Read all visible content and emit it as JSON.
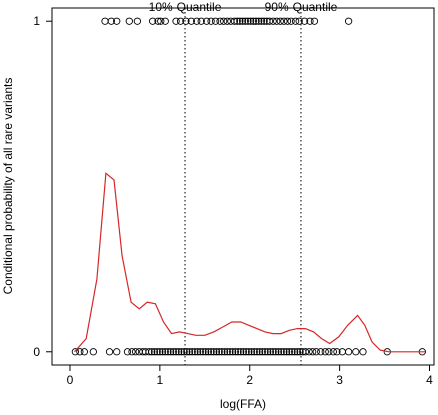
{
  "chart_data": {
    "type": "scatter",
    "title": "",
    "xlabel": "log(FFA)",
    "ylabel": "Conditional probability of all rare variants",
    "xlim": [
      -0.2,
      4.05
    ],
    "ylim": [
      -0.04,
      1.04
    ],
    "x_ticks": [
      0,
      1,
      2,
      3,
      4
    ],
    "x_tick_labels": [
      "0",
      "1",
      "2",
      "3",
      "4"
    ],
    "y_ticks": [
      0,
      1
    ],
    "y_tick_labels": [
      "0",
      "1"
    ],
    "grid": false,
    "legend": "none",
    "colors": {
      "points": "#000000",
      "curve": "#d62728",
      "reference_lines": "#000000",
      "background": "#ffffff"
    },
    "reference_lines": [
      {
        "label": "10%-Quantile",
        "x": 1.28
      },
      {
        "label": "90%-Quantile",
        "x": 2.57
      }
    ],
    "points_y1": [
      {
        "x": 0.39,
        "y": 1
      },
      {
        "x": 0.46,
        "y": 1
      },
      {
        "x": 0.52,
        "y": 1
      },
      {
        "x": 0.66,
        "y": 1
      },
      {
        "x": 0.75,
        "y": 1
      },
      {
        "x": 0.92,
        "y": 1
      },
      {
        "x": 0.98,
        "y": 1
      },
      {
        "x": 1.01,
        "y": 1
      },
      {
        "x": 1.06,
        "y": 1
      },
      {
        "x": 1.18,
        "y": 1
      },
      {
        "x": 1.23,
        "y": 1
      },
      {
        "x": 1.29,
        "y": 1
      },
      {
        "x": 1.35,
        "y": 1
      },
      {
        "x": 1.41,
        "y": 1
      },
      {
        "x": 1.46,
        "y": 1
      },
      {
        "x": 1.52,
        "y": 1
      },
      {
        "x": 1.57,
        "y": 1
      },
      {
        "x": 1.62,
        "y": 1
      },
      {
        "x": 1.67,
        "y": 1
      },
      {
        "x": 1.71,
        "y": 1
      },
      {
        "x": 1.75,
        "y": 1
      },
      {
        "x": 1.79,
        "y": 1
      },
      {
        "x": 1.83,
        "y": 1
      },
      {
        "x": 1.86,
        "y": 1
      },
      {
        "x": 1.89,
        "y": 1
      },
      {
        "x": 1.92,
        "y": 1
      },
      {
        "x": 1.95,
        "y": 1
      },
      {
        "x": 1.98,
        "y": 1
      },
      {
        "x": 2.01,
        "y": 1
      },
      {
        "x": 2.04,
        "y": 1
      },
      {
        "x": 2.07,
        "y": 1
      },
      {
        "x": 2.1,
        "y": 1
      },
      {
        "x": 2.13,
        "y": 1
      },
      {
        "x": 2.16,
        "y": 1
      },
      {
        "x": 2.19,
        "y": 1
      },
      {
        "x": 2.22,
        "y": 1
      },
      {
        "x": 2.26,
        "y": 1
      },
      {
        "x": 2.3,
        "y": 1
      },
      {
        "x": 2.34,
        "y": 1
      },
      {
        "x": 2.38,
        "y": 1
      },
      {
        "x": 2.42,
        "y": 1
      },
      {
        "x": 2.46,
        "y": 1
      },
      {
        "x": 2.51,
        "y": 1
      },
      {
        "x": 2.55,
        "y": 1
      },
      {
        "x": 2.61,
        "y": 1
      },
      {
        "x": 2.67,
        "y": 1
      },
      {
        "x": 2.72,
        "y": 1
      },
      {
        "x": 3.1,
        "y": 1
      }
    ],
    "points_y0": [
      {
        "x": 0.06,
        "y": 0
      },
      {
        "x": 0.11,
        "y": 0
      },
      {
        "x": 0.16,
        "y": 0
      },
      {
        "x": 0.26,
        "y": 0
      },
      {
        "x": 0.44,
        "y": 0
      },
      {
        "x": 0.52,
        "y": 0
      },
      {
        "x": 0.64,
        "y": 0
      },
      {
        "x": 0.69,
        "y": 0
      },
      {
        "x": 0.73,
        "y": 0
      },
      {
        "x": 0.77,
        "y": 0
      },
      {
        "x": 0.81,
        "y": 0
      },
      {
        "x": 0.84,
        "y": 0
      },
      {
        "x": 0.88,
        "y": 0
      },
      {
        "x": 0.91,
        "y": 0
      },
      {
        "x": 0.94,
        "y": 0
      },
      {
        "x": 0.97,
        "y": 0
      },
      {
        "x": 1.0,
        "y": 0
      },
      {
        "x": 1.03,
        "y": 0
      },
      {
        "x": 1.06,
        "y": 0
      },
      {
        "x": 1.09,
        "y": 0
      },
      {
        "x": 1.12,
        "y": 0
      },
      {
        "x": 1.15,
        "y": 0
      },
      {
        "x": 1.18,
        "y": 0
      },
      {
        "x": 1.21,
        "y": 0
      },
      {
        "x": 1.24,
        "y": 0
      },
      {
        "x": 1.27,
        "y": 0
      },
      {
        "x": 1.3,
        "y": 0
      },
      {
        "x": 1.33,
        "y": 0
      },
      {
        "x": 1.36,
        "y": 0
      },
      {
        "x": 1.39,
        "y": 0
      },
      {
        "x": 1.42,
        "y": 0
      },
      {
        "x": 1.45,
        "y": 0
      },
      {
        "x": 1.48,
        "y": 0
      },
      {
        "x": 1.51,
        "y": 0
      },
      {
        "x": 1.54,
        "y": 0
      },
      {
        "x": 1.57,
        "y": 0
      },
      {
        "x": 1.6,
        "y": 0
      },
      {
        "x": 1.63,
        "y": 0
      },
      {
        "x": 1.66,
        "y": 0
      },
      {
        "x": 1.69,
        "y": 0
      },
      {
        "x": 1.72,
        "y": 0
      },
      {
        "x": 1.75,
        "y": 0
      },
      {
        "x": 1.78,
        "y": 0
      },
      {
        "x": 1.81,
        "y": 0
      },
      {
        "x": 1.84,
        "y": 0
      },
      {
        "x": 1.87,
        "y": 0
      },
      {
        "x": 1.9,
        "y": 0
      },
      {
        "x": 1.93,
        "y": 0
      },
      {
        "x": 1.96,
        "y": 0
      },
      {
        "x": 1.99,
        "y": 0
      },
      {
        "x": 2.02,
        "y": 0
      },
      {
        "x": 2.05,
        "y": 0
      },
      {
        "x": 2.08,
        "y": 0
      },
      {
        "x": 2.11,
        "y": 0
      },
      {
        "x": 2.14,
        "y": 0
      },
      {
        "x": 2.17,
        "y": 0
      },
      {
        "x": 2.2,
        "y": 0
      },
      {
        "x": 2.23,
        "y": 0
      },
      {
        "x": 2.26,
        "y": 0
      },
      {
        "x": 2.29,
        "y": 0
      },
      {
        "x": 2.32,
        "y": 0
      },
      {
        "x": 2.35,
        "y": 0
      },
      {
        "x": 2.38,
        "y": 0
      },
      {
        "x": 2.41,
        "y": 0
      },
      {
        "x": 2.44,
        "y": 0
      },
      {
        "x": 2.47,
        "y": 0
      },
      {
        "x": 2.5,
        "y": 0
      },
      {
        "x": 2.53,
        "y": 0
      },
      {
        "x": 2.56,
        "y": 0
      },
      {
        "x": 2.59,
        "y": 0
      },
      {
        "x": 2.62,
        "y": 0
      },
      {
        "x": 2.66,
        "y": 0
      },
      {
        "x": 2.7,
        "y": 0
      },
      {
        "x": 2.74,
        "y": 0
      },
      {
        "x": 2.79,
        "y": 0
      },
      {
        "x": 2.84,
        "y": 0
      },
      {
        "x": 2.88,
        "y": 0
      },
      {
        "x": 2.93,
        "y": 0
      },
      {
        "x": 2.97,
        "y": 0
      },
      {
        "x": 3.03,
        "y": 0
      },
      {
        "x": 3.1,
        "y": 0
      },
      {
        "x": 3.18,
        "y": 0
      },
      {
        "x": 3.26,
        "y": 0
      },
      {
        "x": 3.53,
        "y": 0
      },
      {
        "x": 3.92,
        "y": 0
      }
    ],
    "smooth_curve": {
      "x": [
        0.05,
        0.18,
        0.3,
        0.4,
        0.49,
        0.58,
        0.68,
        0.77,
        0.86,
        0.95,
        1.04,
        1.13,
        1.22,
        1.31,
        1.4,
        1.5,
        1.6,
        1.7,
        1.8,
        1.9,
        1.99,
        2.08,
        2.17,
        2.26,
        2.35,
        2.44,
        2.53,
        2.62,
        2.71,
        2.8,
        2.89,
        2.99,
        3.09,
        3.2,
        3.28,
        3.36,
        3.45,
        3.55,
        3.7,
        3.95
      ],
      "y": [
        0.0,
        0.04,
        0.22,
        0.54,
        0.52,
        0.29,
        0.15,
        0.13,
        0.15,
        0.145,
        0.09,
        0.055,
        0.06,
        0.055,
        0.05,
        0.05,
        0.06,
        0.075,
        0.09,
        0.09,
        0.08,
        0.07,
        0.06,
        0.055,
        0.055,
        0.065,
        0.07,
        0.07,
        0.06,
        0.04,
        0.025,
        0.045,
        0.08,
        0.11,
        0.08,
        0.03,
        0.005,
        0.0,
        0.0,
        0.0
      ]
    }
  }
}
